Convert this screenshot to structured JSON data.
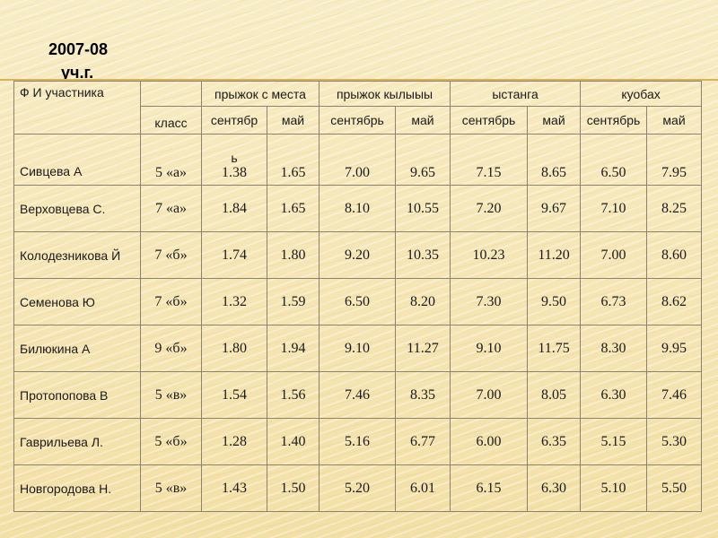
{
  "title": {
    "line1": "2007-08",
    "line2": "уч.г."
  },
  "table": {
    "headers": {
      "name": "Ф И участника",
      "klass": "класс",
      "groups": [
        "прыжок с места",
        "прыжок кылыыы",
        "ыстанга",
        "куобах"
      ],
      "sub": [
        "сентябр",
        "май",
        "сентябрь",
        "май",
        "сентябрь",
        "май",
        "сентябрь",
        "май"
      ],
      "sub_cont": "ь"
    },
    "rows": [
      {
        "name": "Сивцева А",
        "klass": "5 «а»",
        "v": [
          "1.38",
          "1.65",
          "7.00",
          "9.65",
          "7.15",
          "8.65",
          "6.50",
          "7.95"
        ]
      },
      {
        "name": "Верховцева С.",
        "klass": "7 «а»",
        "v": [
          "1.84",
          "1.65",
          "8.10",
          "10.55",
          "7.20",
          "9.67",
          "7.10",
          "8.25"
        ]
      },
      {
        "name": "Колодезникова Й",
        "klass": "7 «б»",
        "v": [
          "1.74",
          "1.80",
          "9.20",
          "10.35",
          "10.23",
          "11.20",
          "7.00",
          "8.60"
        ]
      },
      {
        "name": "Семенова Ю",
        "klass": "7 «б»",
        "v": [
          "1.32",
          "1.59",
          "6.50",
          "8.20",
          "7.30",
          "9.50",
          "6.73",
          "8.62"
        ]
      },
      {
        "name": "Билюкина А",
        "klass": "9 «б»",
        "v": [
          "1.80",
          "1.94",
          "9.10",
          "11.27",
          "9.10",
          "11.75",
          "8.30",
          "9.95"
        ]
      },
      {
        "name": "Протопопова В",
        "klass": "5 «в»",
        "v": [
          "1.54",
          "1.56",
          "7.46",
          "8.35",
          "7.00",
          "8.05",
          "6.30",
          "7.46"
        ]
      },
      {
        "name": "Гаврильева Л.",
        "klass": "5 «б»",
        "v": [
          "1.28",
          "1.40",
          "5.16",
          "6.77",
          "6.00",
          "6.35",
          "5.15",
          "5.30"
        ]
      },
      {
        "name": "Новгородова Н.",
        "klass": "5 «в»",
        "v": [
          "1.43",
          "1.50",
          "5.20",
          "6.01",
          "6.15",
          "6.30",
          "5.10",
          "5.50"
        ]
      }
    ]
  }
}
